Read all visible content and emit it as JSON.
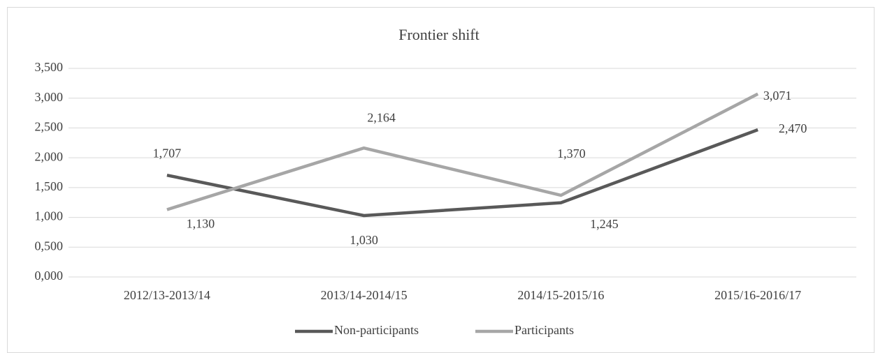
{
  "chart_data": {
    "type": "line",
    "title": "Frontier shift",
    "categories": [
      "2012/13-2013/14",
      "2013/14-2014/15",
      "2014/15-2015/16",
      "2015/16-2016/17"
    ],
    "series": [
      {
        "name": "Non-participants",
        "color": "#595959",
        "values": [
          1.707,
          1.03,
          1.245,
          2.47
        ],
        "value_labels": [
          "1,707",
          "1,030",
          "1,245",
          "2,470"
        ]
      },
      {
        "name": "Participants",
        "color": "#a6a6a6",
        "values": [
          1.13,
          2.164,
          1.37,
          3.071
        ],
        "value_labels": [
          "1,130",
          "2,164",
          "1,370",
          "3,071"
        ]
      }
    ],
    "ylim": [
      0,
      3.5
    ],
    "yticks": [
      {
        "value": 0,
        "label": "0,000"
      },
      {
        "value": 0.5,
        "label": "0,500"
      },
      {
        "value": 1,
        "label": "1,000"
      },
      {
        "value": 1.5,
        "label": "1,500"
      },
      {
        "value": 2,
        "label": "2,000"
      },
      {
        "value": 2.5,
        "label": "2,500"
      },
      {
        "value": 3,
        "label": "3,000"
      },
      {
        "value": 3.5,
        "label": "3,500"
      }
    ],
    "grid": true,
    "legend": "bottom"
  }
}
